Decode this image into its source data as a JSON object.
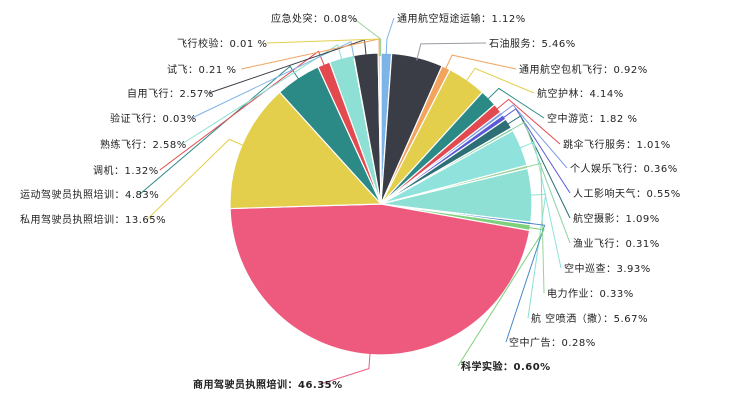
{
  "chart_data": {
    "type": "pie",
    "legend": "none",
    "slices": [
      {
        "label": "通用航空短途运输",
        "value": 1.12,
        "text": "通用航空短途运输：1.12%",
        "color": "#7eb3e8"
      },
      {
        "label": "石油服务",
        "value": 5.46,
        "text": "石油服务：5.46%",
        "color": "#3a3d46"
      },
      {
        "label": "通用航空包机飞行",
        "value": 0.92,
        "text": "通用航空包机飞行：0.92%",
        "color": "#f2a35e"
      },
      {
        "label": "航空护林",
        "value": 4.14,
        "text": "航空护林：4.14%",
        "color": "#e3cf4c"
      },
      {
        "label": "空中游览",
        "value": 1.82,
        "text": "空中游览：1.82 %",
        "color": "#2b8a86"
      },
      {
        "label": "跳伞飞行服务",
        "value": 1.01,
        "text": "跳伞飞行服务：1.01%",
        "color": "#e24a4f"
      },
      {
        "label": "个人娱乐飞行",
        "value": 0.36,
        "text": "个人娱乐飞行：0.36%",
        "color": "#7f9de0"
      },
      {
        "label": "人工影响天气",
        "value": 0.55,
        "text": "人工影响天气：0.55%",
        "color": "#5a59d6"
      },
      {
        "label": "航空摄影",
        "value": 1.09,
        "text": "航空摄影：1.09%",
        "color": "#2c6f77"
      },
      {
        "label": "渔业飞行",
        "value": 0.31,
        "text": "渔业飞行：0.31%",
        "color": "#8ad0a4"
      },
      {
        "label": "空中巡查",
        "value": 3.93,
        "text": "空中巡查：3.93%",
        "color": "#8fe3dc"
      },
      {
        "label": "电力作业",
        "value": 0.33,
        "text": "电力作业：0.33%",
        "color": "#9ad29a"
      },
      {
        "label": "航空喷洒（撒）",
        "value": 5.67,
        "text": "航 空喷洒（撒）：5.67%",
        "color": "#8ee0d4"
      },
      {
        "label": "空中广告",
        "value": 0.28,
        "text": "空中广告：0.28%",
        "color": "#4a87c9"
      },
      {
        "label": "科学实验",
        "value": 0.6,
        "text": "科学实验：0.60%",
        "color": "#7fd07a"
      },
      {
        "label": "商用驾驶员执照培训",
        "value": 46.35,
        "text": "商用驾驶员执照培训：46.35%",
        "color": "#ee5a7e"
      },
      {
        "label": "私用驾驶员执照培训",
        "value": 13.65,
        "text": "私用驾驶员执照培训：13.65%",
        "color": "#e3cf4c"
      },
      {
        "label": "运动驾驶员执照培训",
        "value": 4.83,
        "text": "运动驾驶员执照培训：4.83%",
        "color": "#2b8a86"
      },
      {
        "label": "调机",
        "value": 1.32,
        "text": "调机：1.32%",
        "color": "#e24a4f"
      },
      {
        "label": "熟练飞行",
        "value": 2.58,
        "text": "熟练飞行：2.58%",
        "color": "#8ee0d4"
      },
      {
        "label": "验证飞行",
        "value": 0.03,
        "text": "验证飞行：0.03%",
        "color": "#7eb3e8"
      },
      {
        "label": "自用飞行",
        "value": 2.57,
        "text": "自用飞行：2.57%",
        "color": "#3a3d46"
      },
      {
        "label": "试飞",
        "value": 0.21,
        "text": "试飞：0.21 %",
        "color": "#f2a35e"
      },
      {
        "label": "飞行校验",
        "value": 0.01,
        "text": "飞行校验：0.01 %",
        "color": "#e3cf4c"
      },
      {
        "label": "应急处突",
        "value": 0.08,
        "text": "应急处突：0.08%",
        "color": "#9ad29a"
      }
    ]
  }
}
